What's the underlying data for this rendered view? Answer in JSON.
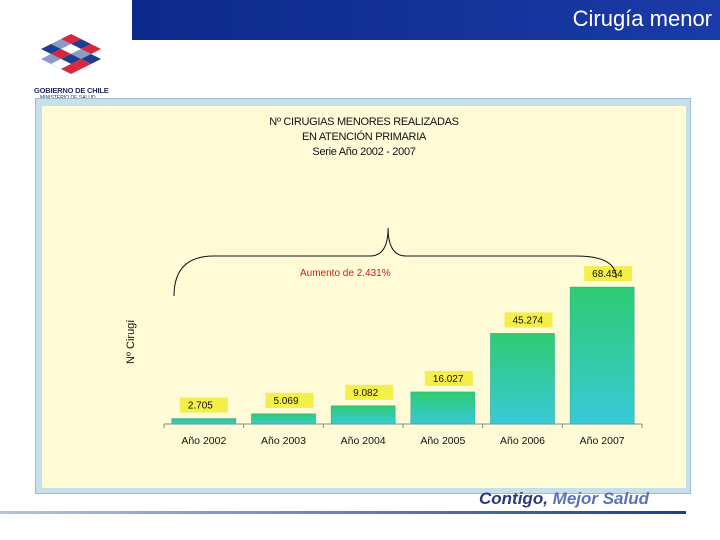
{
  "slide": {
    "title": "Cirugía menor"
  },
  "logo": {
    "line1": "GOBIERNO DE CHILE",
    "line2": "MINISTERIO DE SALUD",
    "colors": [
      "#d7263d",
      "#1f3d8f",
      "#ffffff",
      "#8a9bc4"
    ]
  },
  "footer": {
    "slogan_part1": "Contigo,",
    "slogan_part2": "Mejor Salud"
  },
  "chart_data": {
    "type": "bar",
    "title_lines": [
      "Nº CIRUGIAS MENORES REALIZADAS",
      "EN ATENCIÓN PRIMARIA",
      "Serie Año 2002 - 2007"
    ],
    "ylabel": "Nº Cirugí",
    "categories": [
      "Año 2002",
      "Año 2003",
      "Año 2004",
      "Año 2005",
      "Año 2006",
      "Año 2007"
    ],
    "values": [
      2705,
      5069,
      9082,
      16027,
      45274,
      68454
    ],
    "data_labels": [
      "2.705",
      "5.069",
      "9.082",
      "16.027",
      "45.274",
      "68.454"
    ],
    "annotation": "Aumento de 2.431%",
    "bar_color_top": "#2ecc71",
    "bar_color_bottom": "#38c9d8",
    "label_box_color": "#f4ee4a",
    "annotation_color": "#cc1f1f",
    "ylim": [
      0,
      80000
    ]
  }
}
